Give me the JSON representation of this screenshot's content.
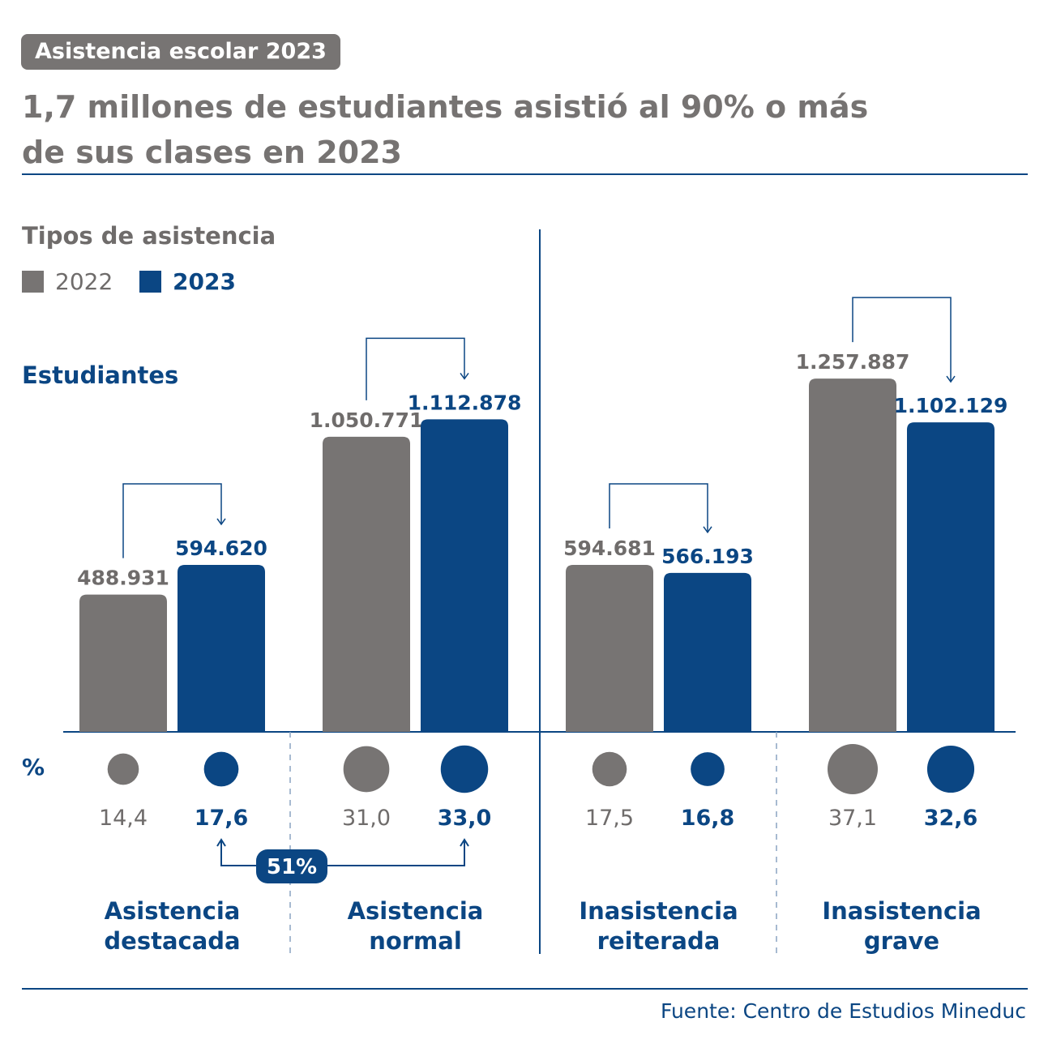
{
  "header": {
    "badge": "Asistencia escolar 2023",
    "title_line1": "1,7 millones de estudiantes asistió al 90% o más",
    "title_line2": "de sus clases en 2023"
  },
  "section_title": "Tipos de asistencia",
  "colors": {
    "y2022": "#777473",
    "y2023": "#0b4683",
    "rule": "#0b4683"
  },
  "chart_data": {
    "type": "bar",
    "categories": [
      [
        "Asistencia",
        "destacada"
      ],
      [
        "Asistencia",
        "normal"
      ],
      [
        "Inasistencia",
        "reiterada"
      ],
      [
        "Inasistencia",
        "grave"
      ]
    ],
    "series": [
      {
        "name": "2022",
        "values": [
          488931,
          1050771,
          594681,
          1257887
        ],
        "labels": [
          "488.931",
          "1.050.771",
          "594.681",
          "1.257.887"
        ],
        "percent": [
          14.4,
          31.0,
          17.5,
          37.1
        ],
        "percent_labels": [
          "14,4",
          "31,0",
          "17,5",
          "37,1"
        ]
      },
      {
        "name": "2023",
        "values": [
          594620,
          1112878,
          566193,
          1102129
        ],
        "labels": [
          "594.620",
          "1.112.878",
          "566.193",
          "1.102.129"
        ],
        "percent": [
          17.6,
          33.0,
          16.8,
          32.6
        ],
        "percent_labels": [
          "17,6",
          "33,0",
          "16,8",
          "32,6"
        ]
      }
    ],
    "ylabel": "Estudiantes",
    "percent_label": "%",
    "annotation": "51%",
    "legend": "top-left"
  },
  "source": "Fuente: Centro de Estudios Mineduc"
}
